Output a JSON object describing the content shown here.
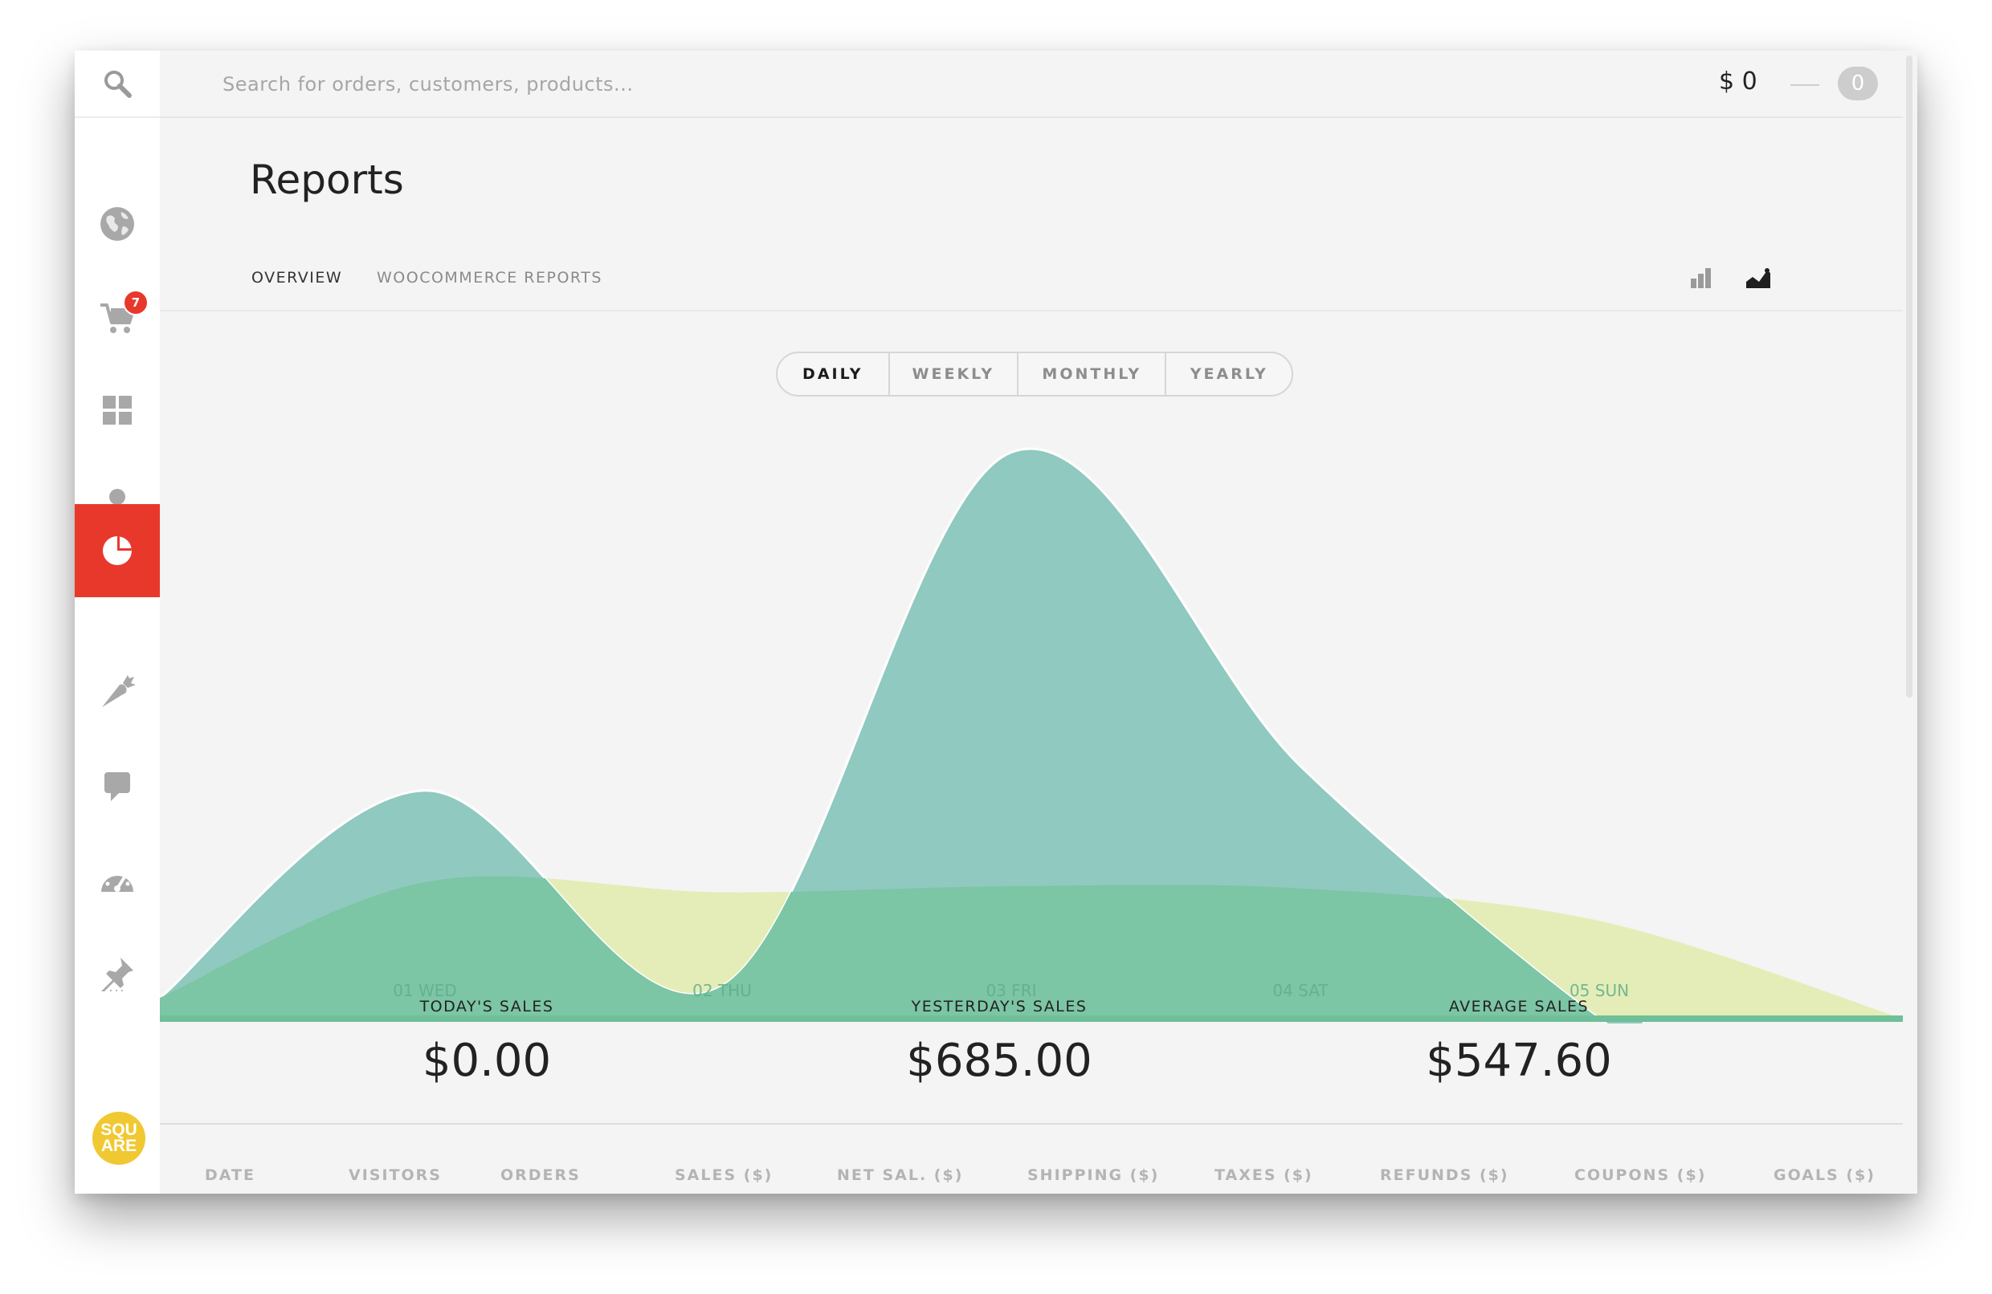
{
  "search": {
    "placeholder": "Search for orders, customers, products..."
  },
  "cart": {
    "total": "$ 0",
    "count": "0"
  },
  "sidebar": {
    "items": [
      {
        "icon": "globe-icon"
      },
      {
        "icon": "cart-icon",
        "badge": "7"
      },
      {
        "icon": "dashboard-grid-icon"
      },
      {
        "icon": "user-icon"
      },
      {
        "icon": "pie-chart-icon",
        "active": true
      },
      {
        "icon": "carrot-icon"
      },
      {
        "icon": "comment-icon"
      },
      {
        "icon": "speedometer-icon"
      },
      {
        "icon": "pin-icon"
      }
    ],
    "more": "...",
    "logo_line1": "SQU",
    "logo_line2": "ARE"
  },
  "page": {
    "title": "Reports",
    "tabs": [
      {
        "label": "OVERVIEW",
        "active": true
      },
      {
        "label": "WOOCOMMERCE REPORTS",
        "active": false
      }
    ],
    "view_toggle": [
      "bar-chart-icon",
      "area-chart-icon"
    ]
  },
  "period": {
    "options": [
      "DAILY",
      "WEEKLY",
      "MONTHLY",
      "YEARLY"
    ],
    "selected": "DAILY"
  },
  "chart_data": {
    "type": "area",
    "categories": [
      "01 WED",
      "02 THU",
      "03 FRI",
      "04 SAT",
      "05 SUN"
    ],
    "series": [
      {
        "color": "#8fc9bf",
        "values": [
          560,
          80,
          1390,
          620,
          0
        ]
      },
      {
        "color": "#e4edb7",
        "values": [
          335,
          310,
          325,
          320,
          240
        ]
      }
    ],
    "ylim": [
      0,
      1450
    ],
    "grid": false
  },
  "stats": [
    {
      "label": "TODAY'S SALES",
      "value": "$0.00"
    },
    {
      "label": "YESTERDAY'S SALES",
      "value": "$685.00"
    },
    {
      "label": "AVERAGE SALES",
      "value": "$547.60"
    }
  ],
  "table": {
    "columns": [
      "DATE",
      "VISITORS",
      "ORDERS",
      "SALES ($)",
      "NET SAL. ($)",
      "SHIPPING ($)",
      "TAXES ($)",
      "REFUNDS ($)",
      "COUPONS ($)",
      "GOALS  ($)"
    ]
  },
  "colors": {
    "accent": "#e8382c",
    "series_teal": "#8fc9bf",
    "series_yellow": "#e4edb7",
    "overlap_green": "#7cc5a5",
    "logo": "#f0c832"
  }
}
